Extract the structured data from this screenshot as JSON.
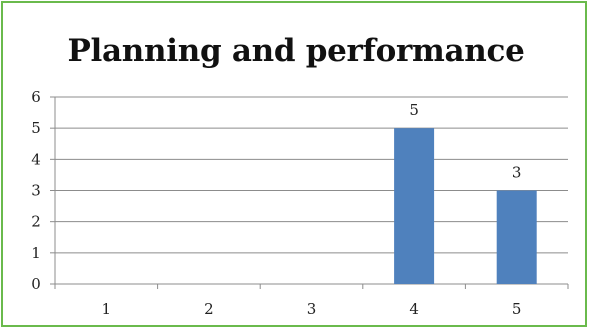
{
  "chart_data": {
    "type": "bar",
    "title": "Planning and performance",
    "categories": [
      "1",
      "2",
      "3",
      "4",
      "5"
    ],
    "values": [
      0,
      0,
      0,
      5,
      3
    ],
    "data_labels": [
      "",
      "",
      "",
      "5",
      "3"
    ],
    "ylim": [
      0,
      6
    ],
    "yticks": [
      0,
      1,
      2,
      3,
      4,
      5,
      6
    ],
    "xlabel": "",
    "ylabel": "",
    "grid": true,
    "legend": "none",
    "bar_color": "#4f81bd",
    "grid_color": "#8c8c8c",
    "frame_color": "#6aba4c"
  }
}
